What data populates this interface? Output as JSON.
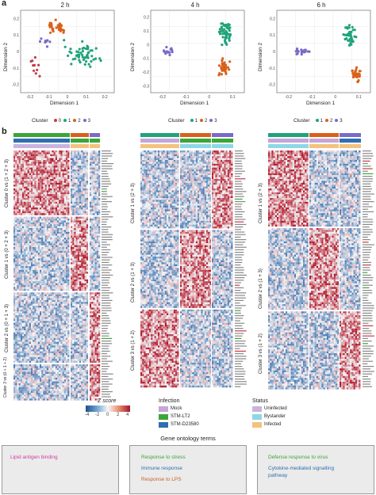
{
  "panel_a": {
    "letter": "a",
    "legend_title": "Cluster",
    "plots": [
      {
        "title": "2 h",
        "xlabel": "Dimension 1",
        "ylabel": "Dimension 2",
        "xticks": [
          "-0.2",
          "-0.1",
          "0",
          "0.1",
          "0.2"
        ],
        "yticks": [
          "0.2",
          "0.1",
          "0",
          "-0.1",
          "-0.2"
        ],
        "legend": [
          "0",
          "1",
          "2",
          "3"
        ]
      },
      {
        "title": "4 h",
        "xlabel": "Dimension 1",
        "ylabel": "Dimension 2",
        "xticks": [
          "-0.2",
          "-0.1",
          "0",
          "0.1"
        ],
        "yticks": [
          "0.2",
          "0.1",
          "0",
          "-0.1",
          "-0.2",
          "-0.3"
        ],
        "legend": [
          "1",
          "2",
          "3"
        ]
      },
      {
        "title": "6 h",
        "xlabel": "Dimension 1",
        "ylabel": "Dimension 2",
        "xticks": [
          "-0.2",
          "-0.1",
          "0",
          "0.1"
        ],
        "yticks": [
          "0.2",
          "0.1",
          "0",
          "-0.1",
          "-0.2"
        ],
        "legend": [
          "1",
          "2",
          "3"
        ]
      }
    ]
  },
  "panel_b": {
    "letter": "b",
    "heatmaps": [
      {
        "row_labels": [
          "Cluster 0 vs (1 + 2 + 3)",
          "Cluster 1 vs (0 + 2 + 3)",
          "Cluster 2 vs (0 + 1 + 3)",
          "Cluster 3 vs (0 + 1 + 2)"
        ]
      },
      {
        "row_labels": [
          "Cluster 1 vs (2 + 3)",
          "Cluster 2 vs (1 + 3)",
          "Cluster 3 vs (1 + 2)"
        ]
      },
      {
        "row_labels": [
          "Cluster 1 vs (2 + 3)",
          "Cluster 2 vs (1 + 3)",
          "Cluster 3 vs (1 + 2)"
        ]
      }
    ]
  },
  "legend": {
    "zscore_title": "Z score",
    "zscore_ticks": [
      "-4",
      "-2",
      "0",
      "2",
      "4"
    ],
    "infection_title": "Infection",
    "infection_items": [
      {
        "label": "Mock",
        "color": "#c6a6d6"
      },
      {
        "label": "STM-LT2",
        "color": "#3aa638"
      },
      {
        "label": "STM-D23580",
        "color": "#2f6fb0"
      }
    ],
    "status_title": "Status",
    "status_items": [
      {
        "label": "Uninfected",
        "color": "#c9b3df"
      },
      {
        "label": "Bystander",
        "color": "#8ed7e6"
      },
      {
        "label": "Infected",
        "color": "#f3c27e"
      }
    ]
  },
  "go": {
    "title": "Gene ontology terms",
    "boxes": [
      {
        "terms": [
          {
            "text": "Lipid antigen binding",
            "color": "#d63aa0"
          }
        ]
      },
      {
        "terms": [
          {
            "text": "Response to stress",
            "color": "#3aa638"
          },
          {
            "text": "Immune response",
            "color": "#2f6fb0"
          },
          {
            "text": "Response to LPS",
            "color": "#c8622a"
          }
        ]
      },
      {
        "terms": [
          {
            "text": "Defense response to virus",
            "color": "#3aa638"
          },
          {
            "text": "Cytokine-mediated signalling",
            "color": "#2f6fb0"
          },
          {
            "text": "pathway",
            "color": "#2f6fb0"
          }
        ]
      }
    ]
  },
  "colors": {
    "cluster0": "#c43c4a",
    "cluster1": "#1fa37a",
    "cluster2": "#d9601a",
    "cluster3": "#7a6ac8",
    "heat_low": "#2a64a8",
    "heat_mid": "#f7f7f7",
    "heat_high": "#b2182b"
  }
}
